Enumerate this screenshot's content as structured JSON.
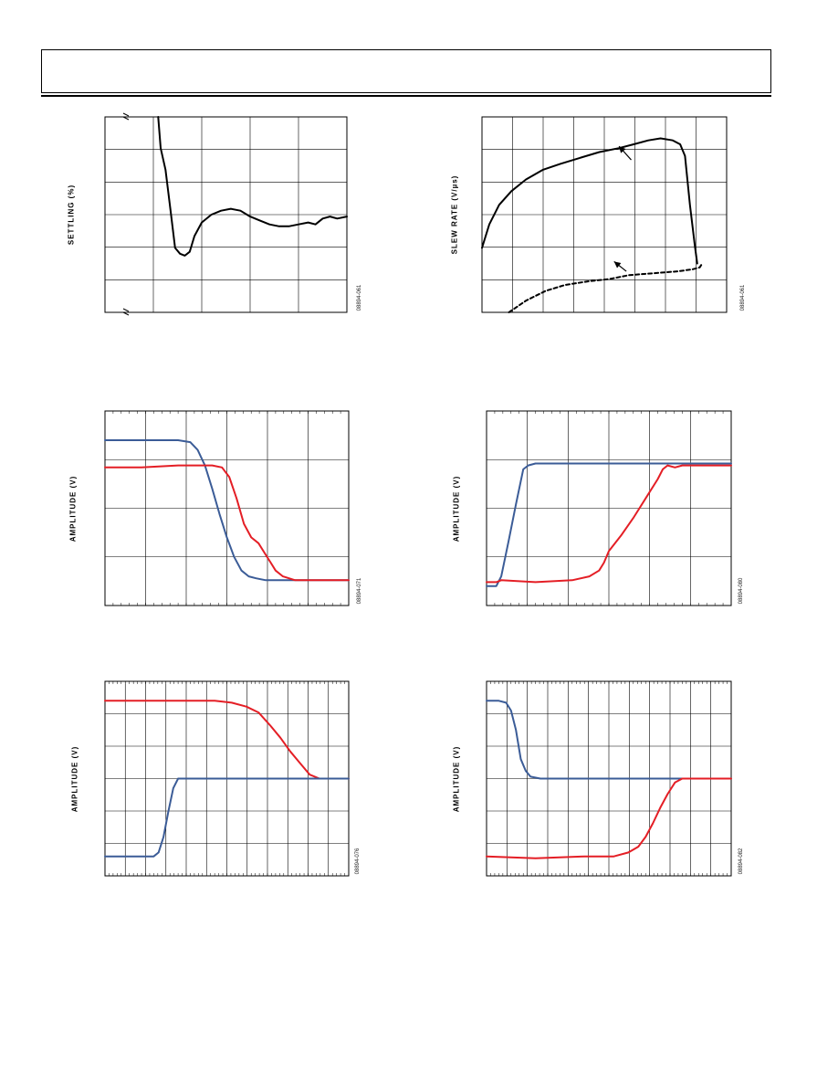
{
  "colors": {
    "blue": "#3B5C97",
    "red": "#E41E25",
    "black": "#000000",
    "grid": "#000000"
  },
  "charts": [
    {
      "id": "settling",
      "ylabel": "SETTLING (%)",
      "figcode": "08894-061",
      "axis_break_marks": true,
      "chart_data": {
        "type": "line",
        "grid": true,
        "grid_divisions": [
          5,
          6
        ],
        "xlim": [
          0,
          100
        ],
        "ylim": [
          0,
          100
        ],
        "series": [
          {
            "color": "black",
            "style": "solid",
            "points": [
              [
                22,
                100
              ],
              [
                23,
                84
              ],
              [
                25,
                73
              ],
              [
                27,
                53
              ],
              [
                29,
                33
              ],
              [
                31,
                30
              ],
              [
                33,
                29
              ],
              [
                35,
                31
              ],
              [
                37,
                39
              ],
              [
                40,
                46
              ],
              [
                44,
                50
              ],
              [
                48,
                52
              ],
              [
                52,
                53
              ],
              [
                56,
                52
              ],
              [
                60,
                49
              ],
              [
                64,
                47
              ],
              [
                68,
                45
              ],
              [
                72,
                44
              ],
              [
                76,
                44
              ],
              [
                80,
                45
              ],
              [
                84,
                46
              ],
              [
                87,
                45
              ],
              [
                90,
                48
              ],
              [
                93,
                49
              ],
              [
                96,
                48
              ],
              [
                100,
                49
              ]
            ]
          }
        ]
      }
    },
    {
      "id": "slewrate",
      "ylabel": "SLEW RATE (V/µs)",
      "figcode": "08894-061",
      "chart_data": {
        "type": "line",
        "grid": true,
        "grid_divisions": [
          8,
          6
        ],
        "xlim": [
          0,
          100
        ],
        "ylim": [
          0,
          100
        ],
        "series": [
          {
            "color": "black",
            "style": "solid",
            "points": [
              [
                0,
                33
              ],
              [
                3,
                45
              ],
              [
                7,
                55
              ],
              [
                12,
                62
              ],
              [
                18,
                68
              ],
              [
                25,
                73
              ],
              [
                32,
                76
              ],
              [
                40,
                79
              ],
              [
                48,
                82
              ],
              [
                56,
                84
              ],
              [
                62,
                86
              ],
              [
                68,
                88
              ],
              [
                73,
                89
              ],
              [
                78,
                88
              ],
              [
                81,
                86
              ],
              [
                83,
                80
              ],
              [
                85,
                55
              ],
              [
                87,
                34
              ],
              [
                88,
                25
              ]
            ]
          },
          {
            "color": "black",
            "style": "dashed",
            "points": [
              [
                11,
                0
              ],
              [
                18,
                6
              ],
              [
                26,
                11
              ],
              [
                34,
                14
              ],
              [
                44,
                16
              ],
              [
                52,
                17
              ],
              [
                60,
                19
              ],
              [
                70,
                20
              ],
              [
                80,
                21
              ],
              [
                86,
                22
              ],
              [
                89,
                23
              ],
              [
                90,
                25
              ]
            ]
          }
        ],
        "arrows": [
          {
            "from": [
              61,
              78
            ],
            "to": [
              56,
              85
            ]
          },
          {
            "from": [
              59,
              21
            ],
            "to": [
              54,
              26
            ]
          }
        ]
      }
    },
    {
      "id": "step-fall",
      "ylabel": "AMPLITUDE (V)",
      "figcode": "08894-071",
      "chart_data": {
        "type": "line",
        "grid": true,
        "grid_divisions": [
          6,
          4
        ],
        "xlim": [
          0,
          100
        ],
        "ylim": [
          0,
          100
        ],
        "series": [
          {
            "color": "blue",
            "style": "solid",
            "points": [
              [
                0,
                85
              ],
              [
                10,
                85
              ],
              [
                20,
                85
              ],
              [
                30,
                85
              ],
              [
                35,
                84
              ],
              [
                38,
                80
              ],
              [
                41,
                72
              ],
              [
                44,
                60
              ],
              [
                47,
                47
              ],
              [
                50,
                35
              ],
              [
                53,
                25
              ],
              [
                56,
                18
              ],
              [
                59,
                15
              ],
              [
                62,
                14
              ],
              [
                66,
                13
              ],
              [
                75,
                13
              ],
              [
                85,
                13
              ],
              [
                100,
                13
              ]
            ]
          },
          {
            "color": "red",
            "style": "solid",
            "points": [
              [
                0,
                71
              ],
              [
                15,
                71
              ],
              [
                30,
                72
              ],
              [
                44,
                72
              ],
              [
                48,
                71
              ],
              [
                51,
                66
              ],
              [
                54,
                55
              ],
              [
                57,
                42
              ],
              [
                60,
                35
              ],
              [
                63,
                32
              ],
              [
                66,
                26
              ],
              [
                68,
                22
              ],
              [
                70,
                18
              ],
              [
                73,
                15
              ],
              [
                78,
                13
              ],
              [
                85,
                13
              ],
              [
                100,
                13
              ]
            ]
          }
        ]
      }
    },
    {
      "id": "step-rise",
      "ylabel": "AMPLITUDE (V)",
      "figcode": "08894-080",
      "chart_data": {
        "type": "line",
        "grid": true,
        "grid_divisions": [
          6,
          4
        ],
        "xlim": [
          0,
          100
        ],
        "ylim": [
          0,
          100
        ],
        "series": [
          {
            "color": "blue",
            "style": "solid",
            "points": [
              [
                0,
                10
              ],
              [
                4,
                10
              ],
              [
                6,
                15
              ],
              [
                9,
                33
              ],
              [
                12,
                52
              ],
              [
                15,
                70
              ],
              [
                17,
                72
              ],
              [
                20,
                73
              ],
              [
                30,
                73
              ],
              [
                50,
                73
              ],
              [
                70,
                73
              ],
              [
                85,
                73
              ],
              [
                100,
                73
              ]
            ]
          },
          {
            "color": "red",
            "style": "solid",
            "points": [
              [
                0,
                12
              ],
              [
                4,
                12
              ],
              [
                6,
                13
              ],
              [
                20,
                12
              ],
              [
                35,
                13
              ],
              [
                42,
                15
              ],
              [
                46,
                18
              ],
              [
                48,
                22
              ],
              [
                50,
                28
              ],
              [
                55,
                36
              ],
              [
                60,
                45
              ],
              [
                65,
                55
              ],
              [
                70,
                65
              ],
              [
                72,
                70
              ],
              [
                74,
                72
              ],
              [
                77,
                71
              ],
              [
                80,
                72
              ],
              [
                90,
                72
              ],
              [
                100,
                72
              ]
            ]
          }
        ]
      }
    },
    {
      "id": "overload-rise",
      "ylabel": "AMPLITUDE (V)",
      "figcode": "08894-076",
      "chart_data": {
        "type": "line",
        "grid": true,
        "grid_divisions": [
          12,
          6
        ],
        "xlim": [
          0,
          100
        ],
        "ylim": [
          0,
          100
        ],
        "series": [
          {
            "color": "red",
            "style": "solid",
            "points": [
              [
                0,
                90
              ],
              [
                15,
                90
              ],
              [
                30,
                90
              ],
              [
                45,
                90
              ],
              [
                52,
                89
              ],
              [
                58,
                87
              ],
              [
                63,
                84
              ],
              [
                68,
                77
              ],
              [
                72,
                71
              ],
              [
                76,
                64
              ],
              [
                80,
                58
              ],
              [
                84,
                52
              ],
              [
                88,
                50
              ],
              [
                92,
                50
              ],
              [
                100,
                50
              ]
            ]
          },
          {
            "color": "blue",
            "style": "solid",
            "points": [
              [
                0,
                10
              ],
              [
                12,
                10
              ],
              [
                20,
                10
              ],
              [
                22,
                12
              ],
              [
                24,
                20
              ],
              [
                26,
                33
              ],
              [
                28,
                45
              ],
              [
                30,
                50
              ],
              [
                35,
                50
              ],
              [
                50,
                50
              ],
              [
                70,
                50
              ],
              [
                85,
                50
              ],
              [
                100,
                50
              ]
            ]
          }
        ]
      }
    },
    {
      "id": "overload-fall",
      "ylabel": "AMPLITUDE (V)",
      "figcode": "08894-082",
      "chart_data": {
        "type": "line",
        "grid": true,
        "grid_divisions": [
          12,
          6
        ],
        "xlim": [
          0,
          100
        ],
        "ylim": [
          0,
          100
        ],
        "series": [
          {
            "color": "blue",
            "style": "solid",
            "points": [
              [
                0,
                90
              ],
              [
                5,
                90
              ],
              [
                8,
                89
              ],
              [
                10,
                85
              ],
              [
                12,
                75
              ],
              [
                14,
                60
              ],
              [
                16,
                54
              ],
              [
                18,
                51
              ],
              [
                22,
                50
              ],
              [
                40,
                50
              ],
              [
                60,
                50
              ],
              [
                80,
                50
              ],
              [
                100,
                50
              ]
            ]
          },
          {
            "color": "red",
            "style": "solid",
            "points": [
              [
                0,
                10
              ],
              [
                20,
                9
              ],
              [
                40,
                10
              ],
              [
                52,
                10
              ],
              [
                58,
                12
              ],
              [
                62,
                15
              ],
              [
                65,
                20
              ],
              [
                68,
                27
              ],
              [
                71,
                35
              ],
              [
                74,
                42
              ],
              [
                77,
                48
              ],
              [
                80,
                50
              ],
              [
                85,
                50
              ],
              [
                100,
                50
              ]
            ]
          }
        ]
      }
    }
  ]
}
